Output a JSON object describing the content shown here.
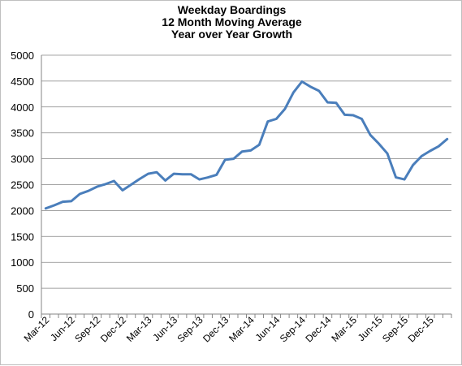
{
  "chart_data": {
    "type": "line",
    "title_lines": [
      "Weekday Boardings",
      "12 Month Moving Average",
      "Year over Year Growth"
    ],
    "xlabel": "",
    "ylabel": "",
    "ylim": [
      0,
      5000
    ],
    "y_ticks": [
      0,
      500,
      1000,
      1500,
      2000,
      2500,
      3000,
      3500,
      4000,
      4500,
      5000
    ],
    "tick_labels": [
      "Mar-12",
      "Jun-12",
      "Sep-12",
      "Dec-12",
      "Mar-13",
      "Jun-13",
      "Sep-13",
      "Dec-13",
      "Mar-14",
      "Jun-14",
      "Sep-14",
      "Dec-14",
      "Mar-15",
      "Jun-15",
      "Sep-15",
      "Dec-15"
    ],
    "grid": true,
    "legend": "none",
    "series_color": "#4a7ebb",
    "categories": [
      "Mar-12",
      "Apr-12",
      "May-12",
      "Jun-12",
      "Jul-12",
      "Aug-12",
      "Sep-12",
      "Oct-12",
      "Nov-12",
      "Dec-12",
      "Jan-13",
      "Feb-13",
      "Mar-13",
      "Apr-13",
      "May-13",
      "Jun-13",
      "Jul-13",
      "Aug-13",
      "Sep-13",
      "Oct-13",
      "Nov-13",
      "Dec-13",
      "Jan-14",
      "Feb-14",
      "Mar-14",
      "Apr-14",
      "May-14",
      "Jun-14",
      "Jul-14",
      "Aug-14",
      "Sep-14",
      "Oct-14",
      "Nov-14",
      "Dec-14",
      "Jan-15",
      "Feb-15",
      "Mar-15",
      "Apr-15",
      "May-15",
      "Jun-15",
      "Jul-15",
      "Aug-15",
      "Sep-15",
      "Oct-15",
      "Nov-15",
      "Dec-15",
      "Jan-16",
      "Feb-16"
    ],
    "series": [
      {
        "values": [
          2040,
          2100,
          2170,
          2180,
          2320,
          2380,
          2460,
          2510,
          2570,
          2390,
          2500,
          2610,
          2710,
          2740,
          2580,
          2710,
          2700,
          2700,
          2600,
          2640,
          2690,
          2980,
          3000,
          3140,
          3160,
          3270,
          3720,
          3770,
          3960,
          4280,
          4490,
          4390,
          4310,
          4090,
          4080,
          3850,
          3840,
          3770,
          3460,
          3290,
          3100,
          2640,
          2600,
          2880,
          3050,
          3150,
          3240,
          3380
        ]
      }
    ]
  }
}
